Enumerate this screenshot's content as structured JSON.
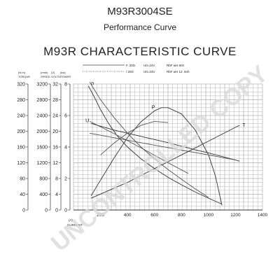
{
  "header": {
    "model": "M93R3004SE",
    "subtitle": "Performance Curve"
  },
  "watermark": {
    "text": "UNCONTROLLED COPY",
    "color": "#d9d9d9"
  },
  "chart_data": {
    "type": "line",
    "title": "M93R CHARACTERISTIC CURVE",
    "legend": [
      {
        "style": "solid",
        "text": "F. 20G",
        "spec": "U0=24V",
        "rbf": "RbF  wH 8nh"
      },
      {
        "style": "dotted",
        "text": "/ 20G",
        "spec": "U0=23V",
        "rbf": "RbF  wH 12. 5nh"
      }
    ],
    "x_axis": {
      "label_unit": "(A)",
      "label": "CURRENT",
      "range": [
        0,
        1400
      ],
      "ticks": [
        200,
        400,
        600,
        800,
        1000,
        1200,
        1400
      ]
    },
    "y_axes": [
      {
        "unit": "(N  m)",
        "label": "TORQUE",
        "range": [
          0,
          320
        ],
        "ticks": [
          0,
          40,
          80,
          120,
          160,
          200,
          240,
          280,
          320
        ]
      },
      {
        "unit": "(rmin)",
        "label": "SPEED",
        "range": [
          0,
          3200
        ],
        "ticks": [
          0,
          400,
          800,
          1200,
          1600,
          2000,
          2400,
          2800,
          3200
        ]
      },
      {
        "unit": "(V)",
        "label": "VOLTS",
        "range": [
          0,
          32
        ],
        "ticks": [
          0,
          4,
          8,
          12,
          16,
          20,
          24,
          28,
          32
        ]
      },
      {
        "unit": "(kw)",
        "label": "POWER",
        "range": [
          0,
          8
        ],
        "ticks": [
          0,
          2,
          4,
          6,
          8
        ]
      }
    ],
    "grid": true,
    "series": [
      {
        "name": "n",
        "color": "#333333",
        "x": [
          110,
          150,
          200,
          260,
          320,
          400,
          500,
          600,
          700,
          800,
          900,
          1000,
          1100
        ],
        "y": [
          3150,
          2900,
          2550,
          2200,
          1900,
          1600,
          1300,
          1050,
          830,
          640,
          460,
          300,
          150
        ],
        "scale": "SPEED"
      },
      {
        "name": "U",
        "color": "#333333",
        "x": [
          130,
          300,
          500,
          700,
          900,
          1000,
          1100,
          1200,
          1230
        ],
        "y": [
          22.0,
          20.3,
          18.7,
          17.1,
          15.3,
          14.5,
          13.6,
          12.7,
          12.4
        ],
        "scale": "VOLTS"
      },
      {
        "name": "P",
        "color": "#333333",
        "x": [
          130,
          200,
          300,
          400,
          500,
          600,
          650,
          700,
          800,
          900,
          1000,
          1050,
          1100
        ],
        "y": [
          0.9,
          1.9,
          3.3,
          4.6,
          5.6,
          6.3,
          6.5,
          6.5,
          6.1,
          5.1,
          3.5,
          2.2,
          0.3
        ],
        "scale": "POWER"
      },
      {
        "name": "T",
        "color": "#333333",
        "x": [
          130,
          400,
          600,
          800,
          1000,
          1200,
          1230
        ],
        "y": [
          30,
          70,
          105,
          140,
          175,
          210,
          215
        ],
        "scale": "TORQUE"
      },
      {
        "name": "",
        "color": "#555555",
        "x": [
          120,
          500,
          800,
          1000,
          1200
        ],
        "y": [
          19.5,
          17.1,
          15.2,
          14.0,
          12.7
        ],
        "scale": "VOLTS"
      },
      {
        "name": "",
        "color": "#555555",
        "x": [
          120,
          300,
          500,
          700,
          850
        ],
        "y": [
          22.5,
          19.4,
          15.8,
          12.0,
          9.3
        ],
        "scale": "VOLTS"
      },
      {
        "name": "",
        "color": "#555555",
        "x": [
          200,
          300,
          400,
          500,
          600,
          700
        ],
        "y": [
          140,
          170,
          195,
          215,
          225,
          222
        ],
        "scale": "TORQUE"
      },
      {
        "name": "",
        "color": "#555555",
        "x": [
          120,
          200,
          300,
          400,
          500,
          600,
          700,
          800,
          900,
          1000
        ],
        "y": [
          3250,
          2800,
          2350,
          1950,
          1600,
          1300,
          1030,
          780,
          540,
          320
        ],
        "scale": "SPEED"
      }
    ],
    "curve_labels": [
      {
        "text": "n",
        "series": 0
      },
      {
        "text": "U",
        "series": 1
      },
      {
        "text": "P",
        "series": 2
      },
      {
        "text": "T",
        "series": 3
      }
    ]
  }
}
